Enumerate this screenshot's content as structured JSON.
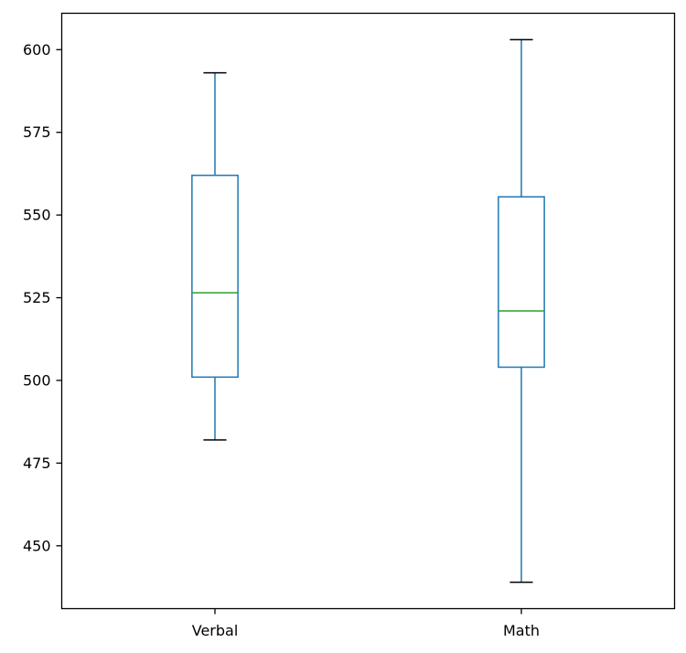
{
  "chart_data": {
    "type": "box",
    "title": "",
    "xlabel": "",
    "ylabel": "",
    "ylim": [
      431,
      611
    ],
    "yticks": [
      450,
      475,
      500,
      525,
      550,
      575,
      600
    ],
    "grid": false,
    "categories": [
      "Verbal",
      "Math"
    ],
    "boxes": [
      {
        "category": "Verbal",
        "whisker_low": 482,
        "q1": 501,
        "median": 526.5,
        "q3": 562,
        "whisker_high": 593
      },
      {
        "category": "Math",
        "whisker_low": 439,
        "q1": 504,
        "median": 521,
        "q3": 555.5,
        "whisker_high": 603
      }
    ],
    "colors": {
      "box": "#1f77b4",
      "median": "#2ca02c",
      "cap": "#000000",
      "axes": "#000000"
    }
  }
}
